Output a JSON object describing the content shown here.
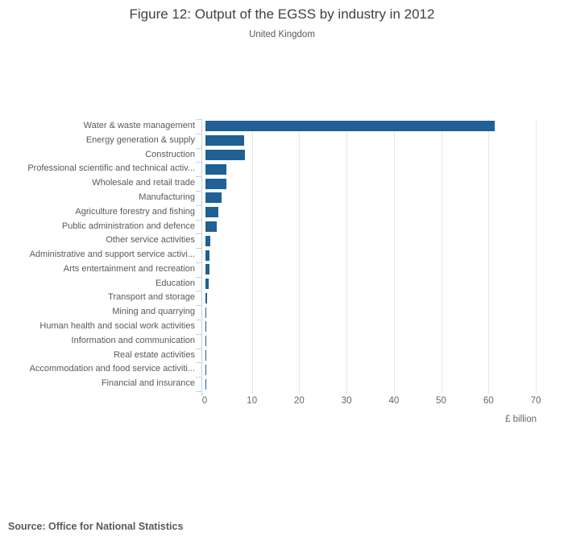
{
  "title": "Figure 12: Output of the EGSS by industry in 2012",
  "subtitle": "United Kingdom",
  "source": "Source: Office for National Statistics",
  "chart_data": {
    "type": "bar",
    "orientation": "horizontal",
    "title": "Figure 12: Output of the EGSS by industry in 2012",
    "subtitle": "United Kingdom",
    "categories": [
      "Water & waste management",
      "Energy generation & supply",
      "Construction",
      "Professional scientific and technical activ...",
      "Wholesale and retail trade",
      "Manufacturing",
      "Agriculture forestry and fishing",
      "Public administration and defence",
      "Other service activities",
      "Administrative and support service activi...",
      "Arts entertainment and recreation",
      "Education",
      "Transport and storage",
      "Mining and quarrying",
      "Human health and social work activities",
      "Information and communication",
      "Real estate activities",
      "Accommodation and food service activiti...",
      "Financial and insurance"
    ],
    "values": [
      61.2,
      8.2,
      8.4,
      4.4,
      4.5,
      3.4,
      2.8,
      2.4,
      1.1,
      0.9,
      0.8,
      0.6,
      0.4,
      0.1,
      0.08,
      0.06,
      0.05,
      0.04,
      0.03
    ],
    "xlabel": "£ billion",
    "xlim": [
      0,
      70
    ],
    "xticks": [
      0,
      10,
      20,
      30,
      40,
      50,
      60,
      70
    ],
    "grid": true,
    "legend": false,
    "bar_color": "#206095",
    "gridline_color": "#e6e6e6",
    "axis_tick_color": "#c6d1e6"
  }
}
